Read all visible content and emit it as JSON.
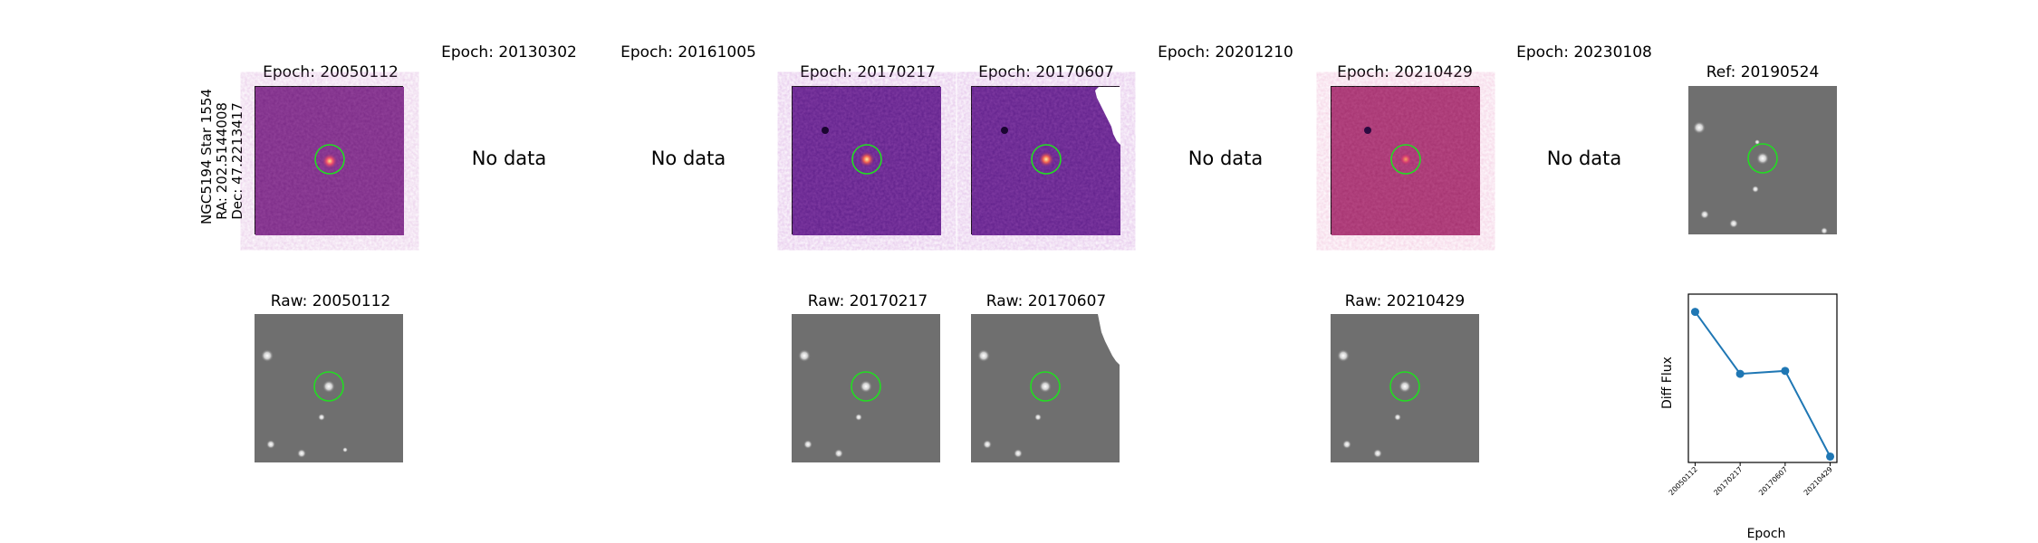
{
  "figure": {
    "star_info": [
      "NGC5194 Star 1554",
      "RA: 202.5144008",
      "Dec: 47.2213417"
    ],
    "diff_titles": [
      "Epoch: 20050112",
      "Epoch: 20130302",
      "Epoch: 20161005",
      "Epoch: 20170217",
      "Epoch: 20170607",
      "Epoch: 20201210",
      "Epoch: 20210429",
      "Epoch: 20230108"
    ],
    "ref_title": "Ref: 20190524",
    "raw_titles": [
      "Raw: 20050112",
      "Raw: 20170217",
      "Raw: 20170607",
      "Raw: 20210429"
    ],
    "no_data_label": "No data",
    "colors": {
      "circle": "#22dd22",
      "line": "#1f77b4",
      "diff_bg": "#7a2a86",
      "raw_bg": "#6f6f6f"
    }
  },
  "chart_data": {
    "type": "line",
    "x": [
      "20050112",
      "20170217",
      "20170607",
      "20210429"
    ],
    "values": [
      0.88,
      0.46,
      0.48,
      -0.1
    ],
    "ylim": [
      -0.14,
      1.0
    ],
    "xlabel": "Epoch",
    "ylabel": "Diff Flux",
    "grid": false
  }
}
